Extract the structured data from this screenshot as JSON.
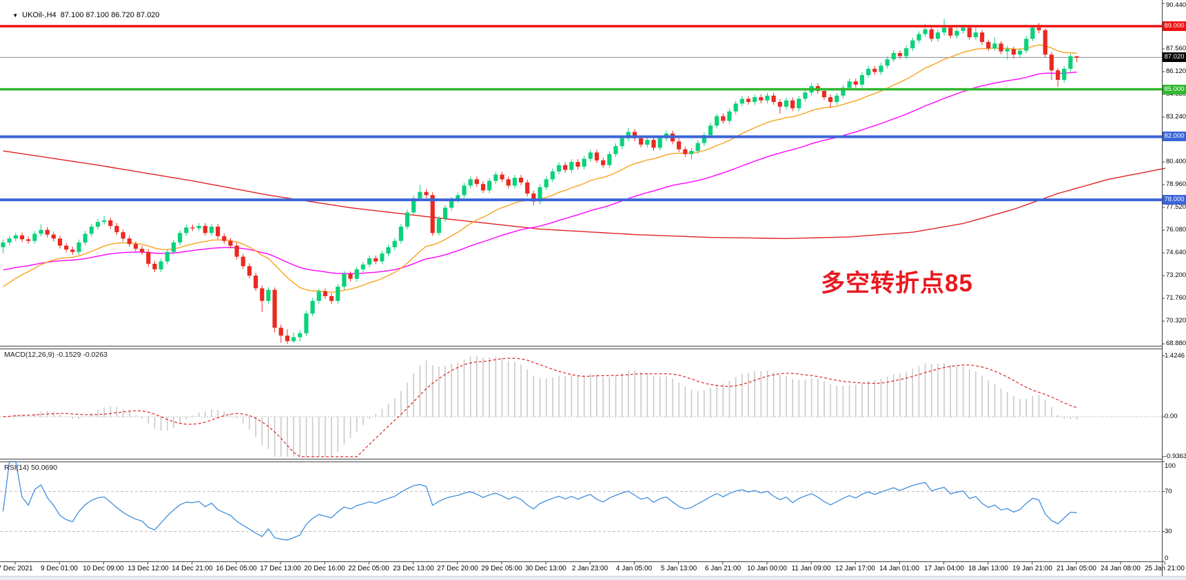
{
  "title": {
    "dropdown_icon": "▼",
    "symbol": "UKOil-,H4",
    "ohlc": "87.100 87.100 86.720 87.020"
  },
  "annotation": {
    "text": "多空转折点85",
    "color": "#e8191f"
  },
  "indicators": {
    "macd": {
      "display": "MACD(12,26,9) -0.1529 -0.0263",
      "fast": 12,
      "slow": 26,
      "signal": 9,
      "axis": [
        "1.4246",
        "0.00",
        "-0.9363"
      ]
    },
    "rsi": {
      "display": "RSI(14) 50.0690",
      "period": 14,
      "last_value": "50.0690",
      "axis": [
        "100",
        "70",
        "30",
        "0"
      ],
      "levels": [
        70,
        30
      ]
    }
  },
  "chart_data": {
    "type": "candlestick",
    "symbol": "UKOil-",
    "timeframe": "H4",
    "last_ohlc": {
      "open": 87.1,
      "high": 87.1,
      "low": 86.72,
      "close": 87.02
    },
    "y_axis": {
      "ticks": [
        "90.440",
        "87.560",
        "86.120",
        "84.680",
        "83.240",
        "80.400",
        "78.960",
        "77.520",
        "76.080",
        "74.640",
        "73.200",
        "71.760",
        "70.320",
        "68.880"
      ]
    },
    "x_labels": [
      "7 Dec 2021",
      "9 Dec 01:00",
      "10 Dec 09:00",
      "13 Dec 12:00",
      "14 Dec 21:00",
      "16 Dec 05:00",
      "17 Dec 13:00",
      "20 Dec 16:00",
      "22 Dec 05:00",
      "23 Dec 13:00",
      "27 Dec 20:00",
      "29 Dec 05:00",
      "30 Dec 13:00",
      "2 Jan 23:00",
      "4 Jan 05:00",
      "5 Jan 13:00",
      "6 Jan 21:00",
      "10 Jan 00:00",
      "11 Jan 09:00",
      "12 Jan 17:00",
      "14 Jan 01:00",
      "17 Jan 04:00",
      "18 Jan 13:00",
      "19 Jan 21:00",
      "21 Jan 05:00",
      "24 Jan 08:00",
      "25 Jan 21:00"
    ],
    "hlines": [
      {
        "price": 89.0,
        "label": "89.000",
        "line_color": "#ee1111",
        "badge_bg": "#ee1111",
        "width": 3.5
      },
      {
        "price": 87.02,
        "label": "87.020",
        "line_color": "#7f8c99",
        "badge_bg": "#000000",
        "width": 1
      },
      {
        "price": 85.0,
        "label": "85.000",
        "line_color": "#2eb82e",
        "badge_bg": "#2eb82e",
        "width": 3.5
      },
      {
        "price": 82.0,
        "label": "82.000",
        "line_color": "#3a64d8",
        "badge_bg": "#3a64d8",
        "width": 4
      },
      {
        "price": 78.0,
        "label": "78.000",
        "line_color": "#3a64d8",
        "badge_bg": "#3a64d8",
        "width": 4
      }
    ],
    "moving_averages": [
      {
        "name": "ma-fast-orange",
        "period": 21,
        "seed": 72.2,
        "color": "#f7a21b"
      },
      {
        "name": "ma-mid-magenta",
        "period": 55,
        "seed": 73.5,
        "color": "#ff00ff"
      }
    ],
    "ma_long": {
      "name": "ma-long-red",
      "color": "#e02020",
      "points": [
        [
          0,
          81.1
        ],
        [
          15,
          80.2
        ],
        [
          30,
          79.2
        ],
        [
          42,
          78.3
        ],
        [
          55,
          77.5
        ],
        [
          70,
          76.8
        ],
        [
          85,
          76.15
        ],
        [
          100,
          75.8
        ],
        [
          112,
          75.62
        ],
        [
          124,
          75.55
        ],
        [
          134,
          75.65
        ],
        [
          144,
          75.95
        ],
        [
          152,
          76.5
        ],
        [
          160,
          77.4
        ],
        [
          167,
          78.4
        ],
        [
          175,
          79.3
        ],
        [
          184,
          80.0
        ]
      ]
    },
    "macd_axis": {
      "max": 1.4246,
      "min": -0.9363
    },
    "rsi_axis": {
      "max": 100,
      "min": 0,
      "levels": [
        70,
        30
      ]
    },
    "colors": {
      "bull": "#0bd17b",
      "bear": "#ea2a21",
      "macd_hist": "#c9c9c9",
      "macd_signal": "#e02020",
      "rsi_line": "#3e8ede",
      "level_dash": "#c3c3c3",
      "axis_line": "#404040",
      "background": "#ffffff"
    },
    "candles": [
      [
        75.0,
        75.48,
        74.6,
        75.3
      ],
      [
        75.3,
        75.73,
        75.12,
        75.55
      ],
      [
        75.55,
        75.93,
        75.37,
        75.75
      ],
      [
        75.75,
        75.93,
        75.32,
        75.5
      ],
      [
        75.5,
        75.68,
        75.22,
        75.4
      ],
      [
        75.4,
        76.03,
        75.22,
        75.85
      ],
      [
        75.85,
        76.45,
        75.67,
        76.1
      ],
      [
        76.1,
        76.28,
        75.62,
        75.8
      ],
      [
        75.8,
        75.98,
        75.37,
        75.55
      ],
      [
        75.55,
        75.73,
        74.92,
        75.1
      ],
      [
        75.1,
        75.28,
        74.67,
        74.85
      ],
      [
        74.85,
        75.03,
        74.52,
        74.7
      ],
      [
        74.7,
        75.48,
        74.52,
        75.3
      ],
      [
        75.3,
        76.03,
        75.12,
        75.85
      ],
      [
        75.85,
        76.48,
        75.67,
        76.3
      ],
      [
        76.3,
        76.78,
        76.12,
        76.6
      ],
      [
        76.6,
        77.0,
        76.42,
        76.7
      ],
      [
        76.7,
        76.88,
        76.17,
        76.35
      ],
      [
        76.35,
        76.53,
        75.77,
        75.95
      ],
      [
        75.95,
        76.13,
        75.37,
        75.55
      ],
      [
        75.55,
        75.73,
        75.02,
        75.2
      ],
      [
        75.2,
        75.38,
        74.72,
        74.9
      ],
      [
        74.9,
        75.08,
        74.52,
        74.7
      ],
      [
        74.7,
        74.88,
        73.77,
        73.95
      ],
      [
        73.95,
        74.13,
        73.42,
        73.6
      ],
      [
        73.6,
        74.28,
        73.42,
        74.1
      ],
      [
        74.1,
        74.88,
        73.92,
        74.7
      ],
      [
        74.7,
        75.48,
        74.52,
        75.3
      ],
      [
        75.3,
        76.08,
        75.12,
        75.9
      ],
      [
        75.9,
        76.43,
        75.72,
        76.25
      ],
      [
        76.25,
        76.43,
        76.02,
        76.2
      ],
      [
        76.2,
        76.53,
        76.02,
        76.35
      ],
      [
        76.35,
        76.53,
        75.72,
        75.9
      ],
      [
        75.9,
        76.48,
        75.72,
        76.3
      ],
      [
        76.3,
        76.48,
        75.52,
        75.7
      ],
      [
        75.7,
        75.88,
        75.22,
        75.4
      ],
      [
        75.4,
        75.58,
        74.92,
        75.1
      ],
      [
        75.1,
        75.28,
        74.22,
        74.4
      ],
      [
        74.4,
        74.58,
        73.62,
        73.8
      ],
      [
        73.8,
        73.98,
        73.02,
        73.2
      ],
      [
        73.2,
        73.38,
        72.22,
        72.4
      ],
      [
        72.4,
        72.58,
        70.9,
        71.6
      ],
      [
        71.6,
        72.48,
        71.42,
        72.3
      ],
      [
        72.3,
        72.45,
        69.6,
        69.9
      ],
      [
        69.9,
        70.1,
        68.95,
        69.4
      ],
      [
        69.4,
        69.8,
        68.88,
        69.05
      ],
      [
        69.05,
        69.6,
        68.95,
        69.3
      ],
      [
        69.3,
        69.75,
        69.05,
        69.55
      ],
      [
        69.55,
        70.98,
        69.37,
        70.8
      ],
      [
        70.8,
        71.78,
        70.62,
        71.6
      ],
      [
        71.6,
        72.38,
        71.42,
        72.2
      ],
      [
        72.2,
        72.38,
        71.72,
        71.9
      ],
      [
        71.9,
        72.08,
        71.42,
        71.6
      ],
      [
        71.6,
        72.68,
        71.42,
        72.5
      ],
      [
        72.5,
        73.48,
        72.32,
        73.3
      ],
      [
        73.3,
        73.48,
        72.82,
        73.0
      ],
      [
        73.0,
        73.78,
        72.82,
        73.6
      ],
      [
        73.6,
        74.08,
        73.42,
        73.9
      ],
      [
        73.9,
        74.48,
        73.72,
        74.3
      ],
      [
        74.3,
        74.48,
        73.92,
        74.1
      ],
      [
        74.1,
        74.78,
        73.92,
        74.6
      ],
      [
        74.6,
        75.18,
        74.42,
        75.0
      ],
      [
        75.0,
        75.58,
        74.82,
        75.4
      ],
      [
        75.4,
        76.48,
        75.22,
        76.3
      ],
      [
        76.3,
        77.38,
        76.12,
        77.2
      ],
      [
        77.2,
        78.28,
        77.02,
        78.1
      ],
      [
        78.1,
        78.95,
        77.92,
        78.5
      ],
      [
        78.5,
        78.68,
        78.12,
        78.3
      ],
      [
        78.3,
        78.48,
        75.72,
        75.9
      ],
      [
        75.9,
        76.98,
        75.72,
        76.8
      ],
      [
        76.8,
        77.68,
        76.62,
        77.5
      ],
      [
        77.5,
        78.18,
        77.32,
        78.0
      ],
      [
        78.0,
        78.48,
        77.82,
        78.3
      ],
      [
        78.3,
        79.08,
        78.12,
        78.9
      ],
      [
        78.9,
        79.48,
        78.72,
        79.3
      ],
      [
        79.3,
        79.48,
        78.82,
        79.0
      ],
      [
        79.0,
        79.18,
        78.42,
        78.6
      ],
      [
        78.6,
        79.38,
        78.42,
        79.2
      ],
      [
        79.2,
        79.78,
        79.02,
        79.6
      ],
      [
        79.6,
        79.78,
        79.12,
        79.3
      ],
      [
        79.3,
        79.48,
        78.72,
        78.9
      ],
      [
        78.9,
        79.58,
        78.72,
        79.4
      ],
      [
        79.4,
        79.58,
        78.92,
        79.1
      ],
      [
        79.1,
        79.28,
        78.22,
        78.4
      ],
      [
        78.4,
        78.58,
        77.65,
        77.9
      ],
      [
        77.9,
        78.98,
        77.72,
        78.8
      ],
      [
        78.8,
        79.48,
        78.62,
        79.3
      ],
      [
        79.3,
        79.98,
        79.12,
        79.8
      ],
      [
        79.8,
        80.38,
        79.62,
        80.2
      ],
      [
        80.2,
        80.38,
        79.72,
        79.9
      ],
      [
        79.9,
        80.58,
        79.72,
        80.4
      ],
      [
        80.4,
        80.58,
        79.92,
        80.1
      ],
      [
        80.1,
        80.78,
        79.92,
        80.6
      ],
      [
        80.6,
        81.18,
        80.42,
        81.0
      ],
      [
        81.0,
        81.18,
        80.32,
        80.5
      ],
      [
        80.5,
        80.68,
        80.02,
        80.2
      ],
      [
        80.2,
        81.08,
        80.02,
        80.9
      ],
      [
        80.9,
        81.58,
        80.72,
        81.4
      ],
      [
        81.4,
        82.08,
        81.22,
        81.9
      ],
      [
        81.9,
        82.55,
        81.72,
        82.3
      ],
      [
        82.3,
        82.48,
        81.72,
        81.9
      ],
      [
        81.9,
        82.08,
        81.32,
        81.5
      ],
      [
        81.5,
        81.98,
        81.32,
        81.8
      ],
      [
        81.8,
        81.98,
        81.12,
        81.3
      ],
      [
        81.3,
        82.08,
        81.12,
        81.9
      ],
      [
        81.9,
        82.38,
        81.72,
        82.2
      ],
      [
        82.2,
        82.38,
        81.52,
        81.7
      ],
      [
        81.7,
        81.88,
        81.02,
        81.2
      ],
      [
        81.2,
        81.38,
        80.72,
        80.9
      ],
      [
        80.9,
        81.28,
        80.55,
        81.1
      ],
      [
        81.1,
        81.78,
        80.92,
        81.6
      ],
      [
        81.6,
        82.28,
        81.42,
        82.1
      ],
      [
        82.1,
        82.88,
        81.92,
        82.7
      ],
      [
        82.7,
        83.48,
        82.52,
        83.3
      ],
      [
        83.3,
        83.48,
        82.82,
        83.0
      ],
      [
        83.0,
        83.78,
        82.82,
        83.6
      ],
      [
        83.6,
        84.28,
        83.42,
        84.1
      ],
      [
        84.1,
        84.58,
        83.92,
        84.4
      ],
      [
        84.4,
        84.58,
        84.02,
        84.2
      ],
      [
        84.2,
        84.68,
        84.02,
        84.5
      ],
      [
        84.5,
        84.68,
        84.12,
        84.3
      ],
      [
        84.3,
        84.78,
        84.12,
        84.6
      ],
      [
        84.6,
        84.78,
        84.02,
        84.2
      ],
      [
        84.2,
        84.38,
        83.45,
        83.9
      ],
      [
        83.9,
        84.48,
        83.72,
        84.3
      ],
      [
        84.3,
        84.48,
        83.62,
        83.8
      ],
      [
        83.8,
        84.58,
        83.62,
        84.4
      ],
      [
        84.4,
        84.98,
        84.22,
        84.8
      ],
      [
        84.8,
        85.38,
        84.62,
        85.2
      ],
      [
        85.2,
        85.38,
        84.72,
        84.9
      ],
      [
        84.9,
        85.08,
        84.32,
        84.5
      ],
      [
        84.5,
        84.68,
        83.85,
        84.2
      ],
      [
        84.2,
        84.78,
        84.02,
        84.6
      ],
      [
        84.6,
        85.28,
        84.42,
        85.1
      ],
      [
        85.1,
        85.68,
        84.92,
        85.5
      ],
      [
        85.5,
        85.68,
        85.12,
        85.3
      ],
      [
        85.3,
        86.08,
        85.12,
        85.9
      ],
      [
        85.9,
        86.48,
        85.72,
        86.3
      ],
      [
        86.3,
        86.48,
        85.92,
        86.1
      ],
      [
        86.1,
        86.68,
        85.92,
        86.5
      ],
      [
        86.5,
        87.08,
        86.32,
        86.9
      ],
      [
        86.9,
        87.48,
        86.72,
        87.3
      ],
      [
        87.3,
        87.48,
        86.92,
        87.1
      ],
      [
        87.1,
        87.78,
        86.92,
        87.6
      ],
      [
        87.6,
        88.28,
        87.42,
        88.1
      ],
      [
        88.1,
        88.68,
        87.92,
        88.5
      ],
      [
        88.5,
        89.15,
        88.32,
        88.8
      ],
      [
        88.8,
        88.98,
        88.02,
        88.2
      ],
      [
        88.2,
        88.78,
        88.02,
        88.6
      ],
      [
        88.6,
        89.45,
        88.42,
        88.9
      ],
      [
        88.9,
        89.05,
        88.22,
        88.4
      ],
      [
        88.4,
        88.88,
        88.22,
        88.7
      ],
      [
        88.7,
        89.1,
        88.52,
        88.9
      ],
      [
        88.9,
        89.05,
        88.12,
        88.3
      ],
      [
        88.3,
        88.95,
        88.12,
        88.6
      ],
      [
        88.6,
        88.75,
        87.82,
        88.0
      ],
      [
        88.0,
        88.15,
        87.42,
        87.6
      ],
      [
        87.6,
        88.3,
        87.45,
        87.9
      ],
      [
        87.9,
        88.05,
        87.22,
        87.4
      ],
      [
        87.4,
        87.75,
        86.9,
        87.55
      ],
      [
        87.55,
        87.7,
        86.95,
        87.2
      ],
      [
        87.2,
        87.62,
        87.02,
        87.45
      ],
      [
        87.45,
        88.4,
        87.3,
        88.2
      ],
      [
        88.2,
        89.05,
        88.05,
        88.9
      ],
      [
        88.9,
        89.2,
        88.55,
        88.75
      ],
      [
        88.75,
        88.85,
        87.02,
        87.2
      ],
      [
        87.2,
        87.35,
        85.6,
        86.2
      ],
      [
        86.2,
        86.35,
        85.15,
        85.6
      ],
      [
        85.6,
        86.48,
        85.42,
        86.3
      ],
      [
        86.3,
        87.25,
        86.12,
        87.1
      ],
      [
        87.1,
        87.1,
        86.72,
        87.02
      ]
    ]
  }
}
